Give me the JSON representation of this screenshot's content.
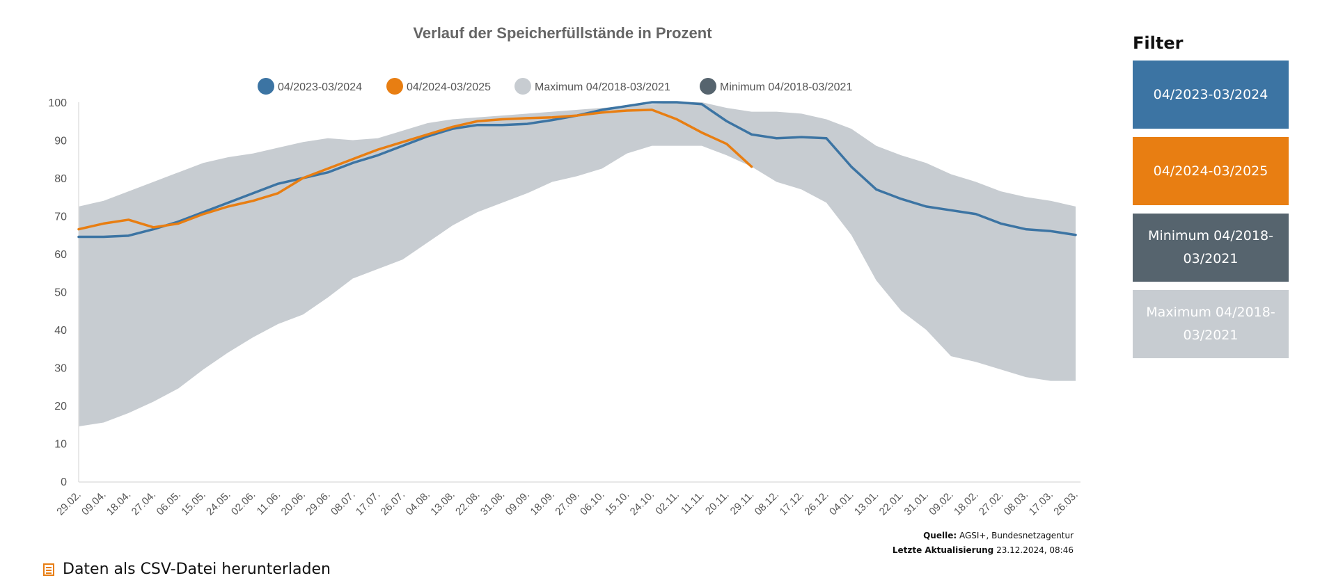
{
  "chart_data": {
    "type": "line",
    "title": "Verlauf der Speicherfüllstände in Prozent",
    "xlabel": "",
    "ylabel": "",
    "ylim": [
      0,
      100
    ],
    "yticks": [
      0,
      10,
      20,
      30,
      40,
      50,
      60,
      70,
      80,
      90,
      100
    ],
    "grid": false,
    "legend_position": "top-center",
    "legend": [
      {
        "label": "04/2023-03/2024",
        "color": "#3c74a3"
      },
      {
        "label": "04/2024-03/2025",
        "color": "#e87e12"
      },
      {
        "label": "Maximum 04/2018-03/2021",
        "color": "#c7ccd1"
      },
      {
        "label": "Minimum 04/2018-03/2021",
        "color": "#56646e"
      }
    ],
    "x": [
      "29.02.",
      "09.04.",
      "18.04.",
      "27.04.",
      "06.05.",
      "15.05.",
      "24.05.",
      "02.06.",
      "11.06.",
      "20.06.",
      "29.06.",
      "08.07.",
      "17.07.",
      "26.07.",
      "04.08.",
      "13.08.",
      "22.08.",
      "31.08.",
      "09.09.",
      "18.09.",
      "27.09.",
      "06.10.",
      "15.10.",
      "24.10.",
      "02.11.",
      "11.11.",
      "20.11.",
      "29.11.",
      "08.12.",
      "17.12.",
      "26.12.",
      "04.01.",
      "13.01.",
      "22.01.",
      "31.01.",
      "09.02.",
      "18.02.",
      "27.02.",
      "08.03.",
      "17.03.",
      "26.03."
    ],
    "series": [
      {
        "name": "04/2023-03/2024",
        "color": "#3c74a3",
        "values": [
          64.5,
          64.5,
          64.8,
          66.5,
          68.5,
          71,
          73.5,
          76,
          78.5,
          80,
          81.5,
          84,
          86,
          88.5,
          91,
          93,
          94,
          94,
          94.3,
          95.3,
          96.5,
          98,
          99,
          100,
          100,
          99.5,
          95,
          91.5,
          90.5,
          90.8,
          90.5,
          83,
          77,
          74.5,
          72.5,
          71.5,
          70.5,
          68,
          66.5,
          66,
          65
        ]
      },
      {
        "name": "04/2024-03/2025",
        "color": "#e87e12",
        "values": [
          66.5,
          68,
          69,
          67,
          68,
          70.5,
          72.5,
          74,
          76,
          80,
          82.5,
          85,
          87.5,
          89.5,
          91.5,
          93.5,
          95,
          95.5,
          95.8,
          96,
          96.5,
          97.3,
          97.8,
          98,
          95.5,
          92,
          89,
          83,
          null,
          null,
          null,
          null,
          null,
          null,
          null,
          null,
          null,
          null,
          null,
          null,
          null
        ]
      },
      {
        "name": "Maximum 04/2018-03/2021",
        "color": "#c7ccd1",
        "values": [
          72.5,
          74,
          76.5,
          79,
          81.5,
          84,
          85.5,
          86.5,
          88,
          89.5,
          90.5,
          90,
          90.5,
          92.5,
          94.5,
          95.5,
          96,
          96.5,
          97,
          97.5,
          98,
          98.5,
          99,
          99.5,
          100,
          100,
          98.5,
          97.5,
          97.5,
          97,
          95.5,
          93,
          88.5,
          86,
          84,
          81,
          79,
          76.5,
          75,
          74,
          72.5
        ]
      },
      {
        "name": "Minimum 04/2018-03/2021",
        "color": "#56646e",
        "values": [
          14.5,
          15.5,
          18,
          21,
          24.5,
          29.5,
          34,
          38,
          41.5,
          44,
          48.5,
          53.5,
          56,
          58.5,
          63,
          67.5,
          71,
          73.5,
          76,
          79,
          80.5,
          82.5,
          86.5,
          88.5,
          88.5,
          88.5,
          86,
          83,
          79,
          77,
          73.5,
          65,
          53,
          45,
          40,
          33,
          31.5,
          29.5,
          27.5,
          26.5,
          26.5
        ]
      }
    ]
  },
  "filter": {
    "title": "Filter",
    "buttons": [
      {
        "label": "04/2023-03/2024",
        "color": "#3c74a3"
      },
      {
        "label": "04/2024-03/2025",
        "color": "#e87e12"
      },
      {
        "label": "Minimum 04/2018-03/2021",
        "color": "#56646e"
      },
      {
        "label": "Maximum 04/2018-03/2021",
        "color": "#c7ccd1"
      }
    ]
  },
  "source": {
    "label": "Quelle:",
    "value": "AGSI+, Bundesnetzagentur",
    "update_label": "Letzte Aktualisierung",
    "update_value": "23.12.2024, 08:46"
  },
  "download": {
    "label": "Daten als CSV-Datei herunterladen"
  }
}
